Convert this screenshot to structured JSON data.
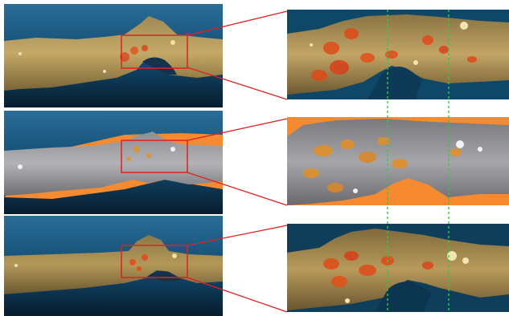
{
  "figure": {
    "rows": [
      {
        "id": "row-1",
        "overview_background": "#1c5a82",
        "surface_color": "#b89a5a",
        "highlight_color": "#e04a18"
      },
      {
        "id": "row-2",
        "overview_background": "#1c5a82",
        "surface_color": "#a8a8aa",
        "highlight_color": "#e0902c",
        "mask_color": "#f58a30"
      },
      {
        "id": "row-3",
        "overview_background": "#1c5a82",
        "surface_color": "#b89a5a",
        "highlight_color": "#e04a18"
      }
    ],
    "annotation_colors": {
      "zoom_box": "#e02020",
      "connector": "#e02020",
      "reference_line": "#2ecc40"
    }
  }
}
